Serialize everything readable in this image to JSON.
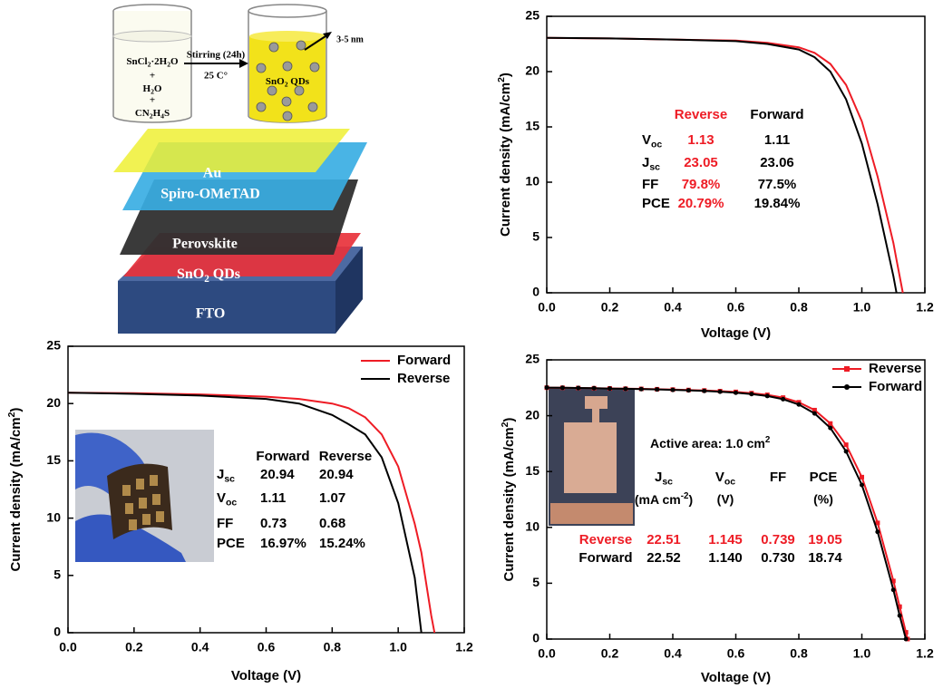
{
  "diagram": {
    "precursors": [
      [
        "SnCl",
        "2",
        "·2H",
        "2",
        "O"
      ],
      "+",
      [
        "H",
        "2",
        "O"
      ],
      "+",
      [
        "CN",
        "2",
        "H",
        "4",
        "S"
      ]
    ],
    "step": [
      "Stirring (24h)",
      "25 C°"
    ],
    "product": [
      "SnO",
      "2",
      " QDs"
    ],
    "size": "3-5 nm",
    "layers": [
      "Au",
      "Spiro-OMeTAD",
      "Perovskite",
      [
        "SnO",
        "2",
        " QDs"
      ],
      "FTO"
    ]
  },
  "chart_data": [
    {
      "type": "line",
      "xlabel": "Voltage (V)",
      "ylabel": [
        "Current density (mA/cm",
        "2",
        ")"
      ],
      "x": [
        0,
        0.2,
        0.4,
        0.6,
        0.7,
        0.8,
        0.85,
        0.9,
        0.95,
        1.0,
        1.05,
        1.1,
        1.11,
        1.13
      ],
      "series": [
        {
          "name": "Reverse",
          "color": "#ee1c25",
          "values": [
            23.05,
            23.0,
            22.9,
            22.8,
            22.6,
            22.2,
            21.7,
            20.7,
            18.8,
            15.5,
            10.5,
            4.5,
            3.0,
            0
          ]
        },
        {
          "name": "Forward",
          "color": "#000000",
          "values": [
            23.06,
            23.0,
            22.9,
            22.75,
            22.5,
            22.0,
            21.3,
            20.0,
            17.5,
            13.5,
            8.0,
            1.5,
            0,
            null
          ]
        }
      ],
      "xlim": [
        0,
        1.2
      ],
      "xticks": [
        {
          "value": 0,
          "label": "0.0"
        },
        {
          "value": 0.2,
          "label": "0.2"
        },
        {
          "value": 0.4,
          "label": "0.4"
        },
        {
          "value": 0.6,
          "label": "0.6"
        },
        {
          "value": 0.8,
          "label": "0.8"
        },
        {
          "value": 1.0,
          "label": "1.0"
        },
        {
          "value": 1.2,
          "label": "1.2"
        }
      ],
      "ylim": [
        0,
        25
      ],
      "yticks": [
        0,
        5,
        10,
        15,
        20,
        25
      ],
      "table": {
        "columns": [
          "Reverse",
          "Forward"
        ],
        "rows": [
          [
            [
              "V",
              "oc"
            ],
            "1.13",
            "1.11"
          ],
          [
            [
              "J",
              "sc"
            ],
            "23.05",
            "23.06"
          ],
          [
            "FF",
            "79.8%",
            "77.5%"
          ],
          [
            "PCE",
            "20.79%",
            "19.84%"
          ]
        ]
      }
    },
    {
      "type": "line",
      "xlabel": "Voltage (V)",
      "ylabel": [
        "Current density (mA/cm",
        "2",
        ")"
      ],
      "x": [
        0,
        0.2,
        0.4,
        0.6,
        0.7,
        0.8,
        0.85,
        0.9,
        0.95,
        1.0,
        1.05,
        1.07,
        1.1,
        1.11
      ],
      "series": [
        {
          "name": "Forward",
          "color": "#ee1c25",
          "values": [
            20.94,
            20.9,
            20.8,
            20.6,
            20.4,
            20.0,
            19.6,
            18.8,
            17.3,
            14.5,
            9.5,
            7.0,
            1.5,
            0
          ]
        },
        {
          "name": "Reverse",
          "color": "#000000",
          "values": [
            20.94,
            20.85,
            20.7,
            20.4,
            20.0,
            19.0,
            18.2,
            17.3,
            15.3,
            11.3,
            4.8,
            0,
            null,
            null
          ]
        }
      ],
      "xlim": [
        0,
        1.2
      ],
      "xticks": [
        {
          "value": 0,
          "label": "0.0"
        },
        {
          "value": 0.2,
          "label": "0.2"
        },
        {
          "value": 0.4,
          "label": "0.4"
        },
        {
          "value": 0.6,
          "label": "0.6"
        },
        {
          "value": 0.8,
          "label": "0.8"
        },
        {
          "value": 1.0,
          "label": "1.0"
        },
        {
          "value": 1.2,
          "label": "1.2"
        }
      ],
      "ylim": [
        0,
        25
      ],
      "yticks": [
        0,
        5,
        10,
        15,
        20,
        25
      ],
      "legend": "upper right",
      "table": {
        "columns": [
          "Forward",
          "Reverse"
        ],
        "rows": [
          [
            [
              "J",
              "sc"
            ],
            "20.94",
            "20.94"
          ],
          [
            [
              "V",
              "oc"
            ],
            "1.11",
            "1.07"
          ],
          [
            "FF",
            "0.73",
            "0.68"
          ],
          [
            "PCE",
            "16.97%",
            "15.24%"
          ]
        ]
      }
    },
    {
      "type": "line",
      "xlabel": "Voltage (V)",
      "ylabel": [
        "Current density (mA/cm",
        "2",
        ")"
      ],
      "annotation": [
        "Active area: 1.0 cm",
        "2"
      ],
      "x": [
        0,
        0.05,
        0.1,
        0.15,
        0.2,
        0.25,
        0.3,
        0.35,
        0.4,
        0.45,
        0.5,
        0.55,
        0.6,
        0.65,
        0.7,
        0.75,
        0.8,
        0.85,
        0.9,
        0.95,
        1.0,
        1.05,
        1.1,
        1.12,
        1.14,
        1.145
      ],
      "series": [
        {
          "name": "Reverse",
          "color": "#ee1c25",
          "marker": "square",
          "values": [
            22.51,
            22.5,
            22.48,
            22.46,
            22.44,
            22.42,
            22.4,
            22.37,
            22.34,
            22.3,
            22.26,
            22.2,
            22.13,
            22.02,
            21.87,
            21.62,
            21.2,
            20.5,
            19.3,
            17.4,
            14.5,
            10.4,
            5.2,
            2.9,
            0.6,
            0
          ]
        },
        {
          "name": "Forward",
          "color": "#000000",
          "marker": "circle",
          "values": [
            22.52,
            22.5,
            22.48,
            22.46,
            22.43,
            22.41,
            22.38,
            22.35,
            22.31,
            22.27,
            22.22,
            22.15,
            22.06,
            21.94,
            21.76,
            21.48,
            21.0,
            20.2,
            18.9,
            16.8,
            13.8,
            9.6,
            4.4,
            2.1,
            0,
            null
          ]
        }
      ],
      "xlim": [
        0,
        1.2
      ],
      "xticks": [
        {
          "value": 0,
          "label": "0.0"
        },
        {
          "value": 0.2,
          "label": "0.2"
        },
        {
          "value": 0.4,
          "label": "0.4"
        },
        {
          "value": 0.6,
          "label": "0.6"
        },
        {
          "value": 0.8,
          "label": "0.8"
        },
        {
          "value": 1.0,
          "label": "1.0"
        },
        {
          "value": 1.2,
          "label": "1.2"
        }
      ],
      "ylim": [
        0,
        25
      ],
      "yticks": [
        0,
        5,
        10,
        15,
        20,
        25
      ],
      "legend": "upper right",
      "table": {
        "columns": [
          [
            "J",
            "sc"
          ],
          [
            "V",
            "oc"
          ],
          "FF",
          "PCE"
        ],
        "units": [
          [
            "(mA cm",
            "-2",
            ")"
          ],
          "(V)",
          null,
          "(%)"
        ],
        "rows": [
          [
            "Reverse",
            "22.51",
            "1.145",
            "0.739",
            "19.05"
          ],
          [
            "Forward",
            "22.52",
            "1.140",
            "0.730",
            "18.74"
          ]
        ]
      }
    }
  ]
}
